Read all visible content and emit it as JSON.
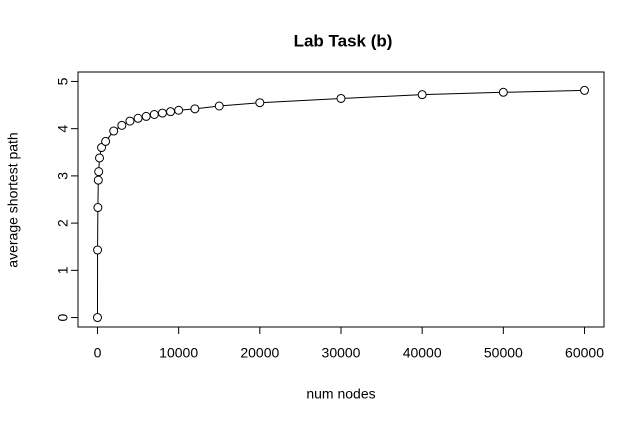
{
  "chart_data": {
    "type": "line",
    "title": "Lab Task (b)",
    "x_label": "num nodes",
    "y_label": "average shortest path",
    "color": "#000000",
    "markers": true,
    "x": [
      1,
      10,
      50,
      100,
      150,
      250,
      500,
      1000,
      2000,
      3000,
      4000,
      5000,
      6000,
      7000,
      8000,
      9000,
      10000,
      12000,
      15000,
      20000,
      30000,
      40000,
      50000,
      60000
    ],
    "values": [
      0,
      1.43,
      2.33,
      2.91,
      3.09,
      3.38,
      3.6,
      3.73,
      3.95,
      4.07,
      4.16,
      4.22,
      4.26,
      4.3,
      4.33,
      4.36,
      4.39,
      4.42,
      4.48,
      4.55,
      4.64,
      4.72,
      4.77,
      4.81
    ],
    "xlim": [
      -2400,
      62400
    ],
    "xticks": [
      0,
      10000,
      20000,
      30000,
      40000,
      50000,
      60000
    ],
    "ylim": [
      -0.2,
      5.2
    ],
    "yticks": [
      0,
      1,
      2,
      3,
      4,
      5
    ]
  }
}
